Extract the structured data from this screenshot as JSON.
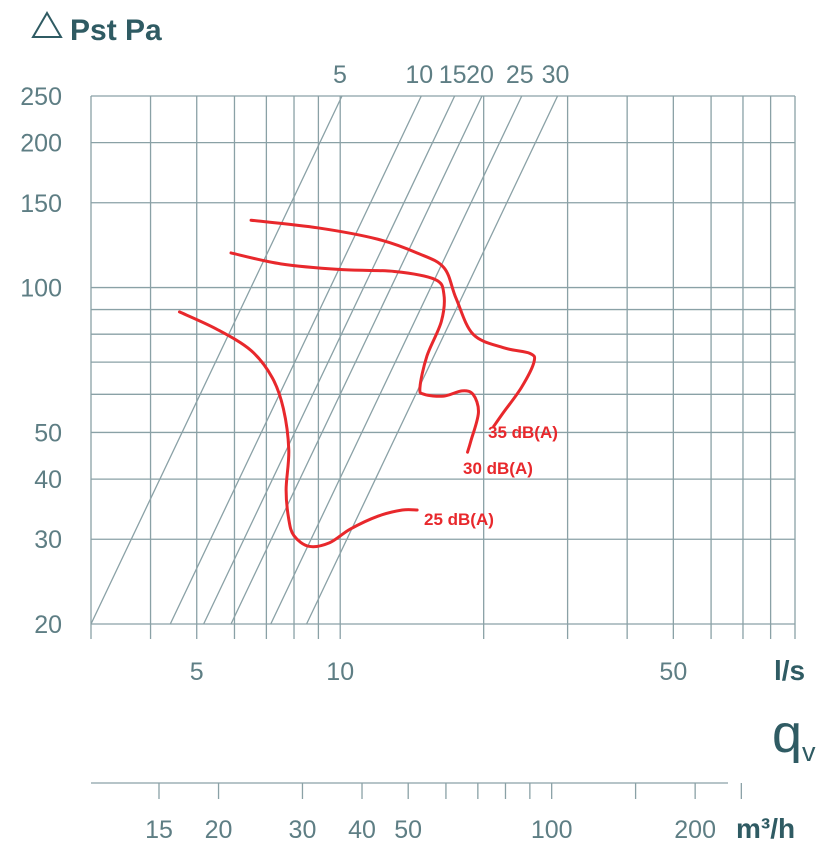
{
  "chart_data": {
    "type": "line",
    "title": "△ Pst Pa",
    "x_axis": {
      "unit": "l/s",
      "scale": "log",
      "range": [
        3,
        90
      ],
      "tick_labels": [
        5,
        10,
        50
      ]
    },
    "x_axis_secondary": {
      "unit": "m³/h",
      "scale": "log",
      "tick_labels": [
        15,
        20,
        30,
        40,
        50,
        100,
        200
      ]
    },
    "y_axis": {
      "unit": "Pa",
      "scale": "log",
      "range": [
        20,
        250
      ],
      "tick_labels": [
        20,
        30,
        40,
        50,
        100,
        150,
        200,
        250
      ]
    },
    "quantity_symbol": "q",
    "quantity_subscript": "v",
    "reference_lines": {
      "labels": [
        5,
        10,
        15,
        20,
        25,
        30
      ]
    },
    "series": [
      {
        "name": "35 dB(A)",
        "color": "#e8282c",
        "points": [
          [
            6.5,
            138
          ],
          [
            9,
            133
          ],
          [
            12,
            126
          ],
          [
            14.5,
            118
          ],
          [
            16.5,
            110
          ],
          [
            17.5,
            95
          ],
          [
            19,
            80
          ],
          [
            22,
            75
          ],
          [
            25,
            73
          ],
          [
            25.5,
            70
          ],
          [
            24,
            62
          ],
          [
            22,
            55
          ],
          [
            21,
            51.5
          ]
        ]
      },
      {
        "name": "30 dB(A)",
        "color": "#e8282c",
        "points": [
          [
            5.9,
            118
          ],
          [
            7.5,
            112
          ],
          [
            10,
            109
          ],
          [
            13,
            108
          ],
          [
            15.8,
            104
          ],
          [
            16.5,
            97
          ],
          [
            16.3,
            85
          ],
          [
            15.2,
            72
          ],
          [
            14.7,
            62
          ],
          [
            15,
            60
          ],
          [
            16.5,
            59.5
          ],
          [
            18,
            61
          ],
          [
            19,
            60
          ],
          [
            19.5,
            55
          ],
          [
            18.8,
            48
          ],
          [
            18.5,
            45.5
          ]
        ]
      },
      {
        "name": "25 dB(A)",
        "color": "#e8282c",
        "points": [
          [
            4.6,
            89
          ],
          [
            5.5,
            82
          ],
          [
            6.5,
            74
          ],
          [
            7.2,
            65
          ],
          [
            7.6,
            56
          ],
          [
            7.8,
            46
          ],
          [
            7.7,
            38
          ],
          [
            7.8,
            33
          ],
          [
            8,
            30.5
          ],
          [
            8.6,
            29
          ],
          [
            9.5,
            29.5
          ],
          [
            10.5,
            31.5
          ],
          [
            12,
            33.5
          ],
          [
            13.5,
            34.5
          ],
          [
            14.5,
            34.5
          ]
        ]
      }
    ],
    "grid": true,
    "colors": {
      "grid": "#8aa1a6",
      "text": "#5e7e84",
      "unit": "#2f5b63",
      "series": "#e8282c"
    }
  }
}
